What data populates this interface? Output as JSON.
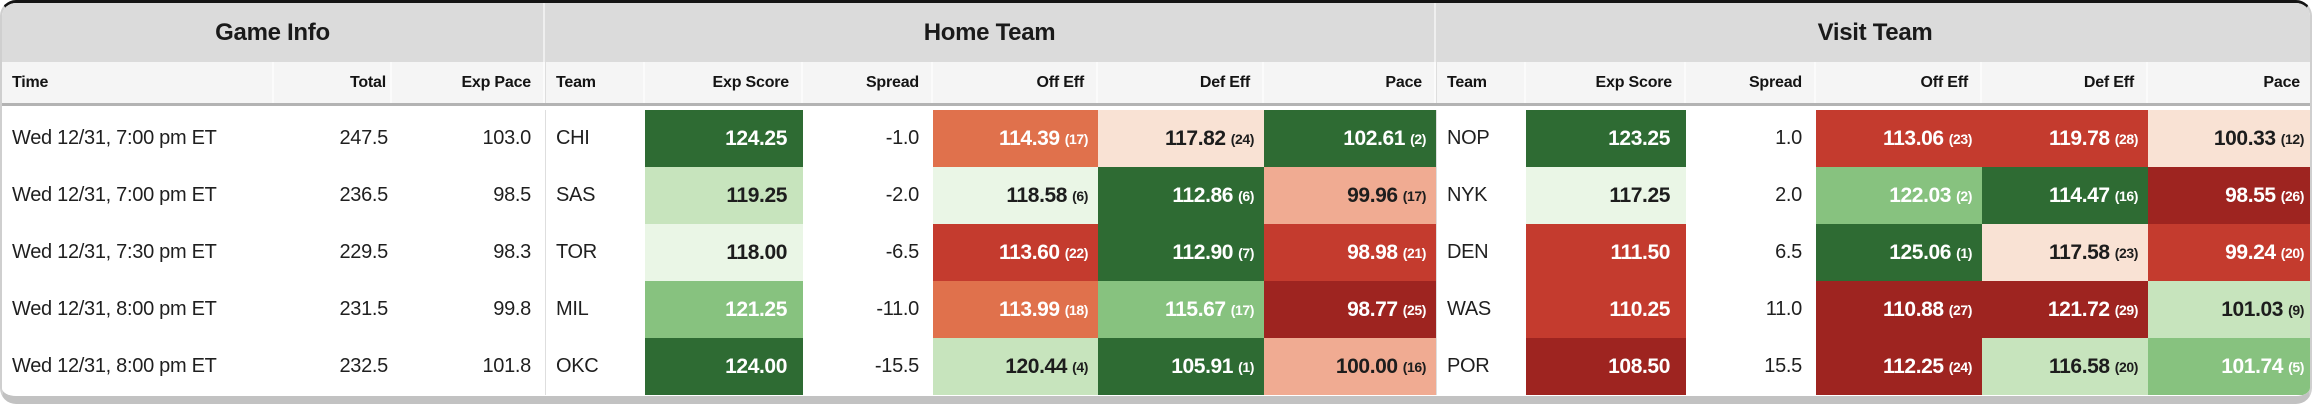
{
  "table": {
    "group_headers": [
      {
        "label": "Game Info"
      },
      {
        "label": "Home Team"
      },
      {
        "label": "Visit Team"
      }
    ],
    "column_headers": {
      "time": "Time",
      "total": "Total",
      "exp_pace": "Exp Pace",
      "team": "Team",
      "exp_score": "Exp Score",
      "spread": "Spread",
      "off_eff": "Off Eff",
      "def_eff": "Def Eff",
      "pace": "Pace"
    }
  },
  "palette": {
    "green_dark": "#2e6b33",
    "green_mid": "#87c27f",
    "green_light": "#c7e4bd",
    "green_faint": "#eaf6e6",
    "red_faint": "#f9e2d4",
    "red_light": "#f0ab92",
    "orange": "#e0714c",
    "red_mid": "#c43b2e",
    "red_dark": "#9e2420",
    "text_dark": "#1d1d1d",
    "text_light": "#ffffff",
    "header_bg": "#dbdbdb",
    "subheader_bg": "#f5f5f5"
  },
  "rows": [
    {
      "time": "Wed 12/31, 7:00 pm ET",
      "total": "247.5",
      "exp_pace": "103.0",
      "home": {
        "team": "CHI",
        "exp_score": {
          "value": "124.25",
          "tone": "green_dark"
        },
        "spread": "-1.0",
        "off_eff": {
          "value": "114.39",
          "rank": "(17)",
          "tone": "orange"
        },
        "def_eff": {
          "value": "117.82",
          "rank": "(24)",
          "tone": "red_faint"
        },
        "pace": {
          "value": "102.61",
          "rank": "(2)",
          "tone": "green_dark"
        }
      },
      "visit": {
        "team": "NOP",
        "exp_score": {
          "value": "123.25",
          "tone": "green_dark"
        },
        "spread": "1.0",
        "off_eff": {
          "value": "113.06",
          "rank": "(23)",
          "tone": "red_mid"
        },
        "def_eff": {
          "value": "119.78",
          "rank": "(28)",
          "tone": "red_mid"
        },
        "pace": {
          "value": "100.33",
          "rank": "(12)",
          "tone": "red_faint"
        }
      }
    },
    {
      "time": "Wed 12/31, 7:00 pm ET",
      "total": "236.5",
      "exp_pace": "98.5",
      "home": {
        "team": "SAS",
        "exp_score": {
          "value": "119.25",
          "tone": "green_light"
        },
        "spread": "-2.0",
        "off_eff": {
          "value": "118.58",
          "rank": "(6)",
          "tone": "green_faint"
        },
        "def_eff": {
          "value": "112.86",
          "rank": "(6)",
          "tone": "green_dark"
        },
        "pace": {
          "value": "99.96",
          "rank": "(17)",
          "tone": "red_light"
        }
      },
      "visit": {
        "team": "NYK",
        "exp_score": {
          "value": "117.25",
          "tone": "green_faint"
        },
        "spread": "2.0",
        "off_eff": {
          "value": "122.03",
          "rank": "(2)",
          "tone": "green_mid"
        },
        "def_eff": {
          "value": "114.47",
          "rank": "(16)",
          "tone": "green_dark"
        },
        "pace": {
          "value": "98.55",
          "rank": "(26)",
          "tone": "red_dark"
        }
      }
    },
    {
      "time": "Wed 12/31, 7:30 pm ET",
      "total": "229.5",
      "exp_pace": "98.3",
      "home": {
        "team": "TOR",
        "exp_score": {
          "value": "118.00",
          "tone": "green_faint"
        },
        "spread": "-6.5",
        "off_eff": {
          "value": "113.60",
          "rank": "(22)",
          "tone": "red_mid"
        },
        "def_eff": {
          "value": "112.90",
          "rank": "(7)",
          "tone": "green_dark"
        },
        "pace": {
          "value": "98.98",
          "rank": "(21)",
          "tone": "red_mid"
        }
      },
      "visit": {
        "team": "DEN",
        "exp_score": {
          "value": "111.50",
          "tone": "red_mid"
        },
        "spread": "6.5",
        "off_eff": {
          "value": "125.06",
          "rank": "(1)",
          "tone": "green_dark"
        },
        "def_eff": {
          "value": "117.58",
          "rank": "(23)",
          "tone": "red_faint"
        },
        "pace": {
          "value": "99.24",
          "rank": "(20)",
          "tone": "red_mid"
        }
      }
    },
    {
      "time": "Wed 12/31, 8:00 pm ET",
      "total": "231.5",
      "exp_pace": "99.8",
      "home": {
        "team": "MIL",
        "exp_score": {
          "value": "121.25",
          "tone": "green_mid"
        },
        "spread": "-11.0",
        "off_eff": {
          "value": "113.99",
          "rank": "(18)",
          "tone": "orange"
        },
        "def_eff": {
          "value": "115.67",
          "rank": "(17)",
          "tone": "green_mid"
        },
        "pace": {
          "value": "98.77",
          "rank": "(25)",
          "tone": "red_dark"
        }
      },
      "visit": {
        "team": "WAS",
        "exp_score": {
          "value": "110.25",
          "tone": "red_mid"
        },
        "spread": "11.0",
        "off_eff": {
          "value": "110.88",
          "rank": "(27)",
          "tone": "red_dark"
        },
        "def_eff": {
          "value": "121.72",
          "rank": "(29)",
          "tone": "red_dark"
        },
        "pace": {
          "value": "101.03",
          "rank": "(9)",
          "tone": "green_light"
        }
      }
    },
    {
      "time": "Wed 12/31, 8:00 pm ET",
      "total": "232.5",
      "exp_pace": "101.8",
      "home": {
        "team": "OKC",
        "exp_score": {
          "value": "124.00",
          "tone": "green_dark"
        },
        "spread": "-15.5",
        "off_eff": {
          "value": "120.44",
          "rank": "(4)",
          "tone": "green_light"
        },
        "def_eff": {
          "value": "105.91",
          "rank": "(1)",
          "tone": "green_dark"
        },
        "pace": {
          "value": "100.00",
          "rank": "(16)",
          "tone": "red_light"
        }
      },
      "visit": {
        "team": "POR",
        "exp_score": {
          "value": "108.50",
          "tone": "red_dark"
        },
        "spread": "15.5",
        "off_eff": {
          "value": "112.25",
          "rank": "(24)",
          "tone": "red_dark"
        },
        "def_eff": {
          "value": "116.58",
          "rank": "(20)",
          "tone": "green_light"
        },
        "pace": {
          "value": "101.74",
          "rank": "(5)",
          "tone": "green_mid"
        }
      }
    }
  ]
}
